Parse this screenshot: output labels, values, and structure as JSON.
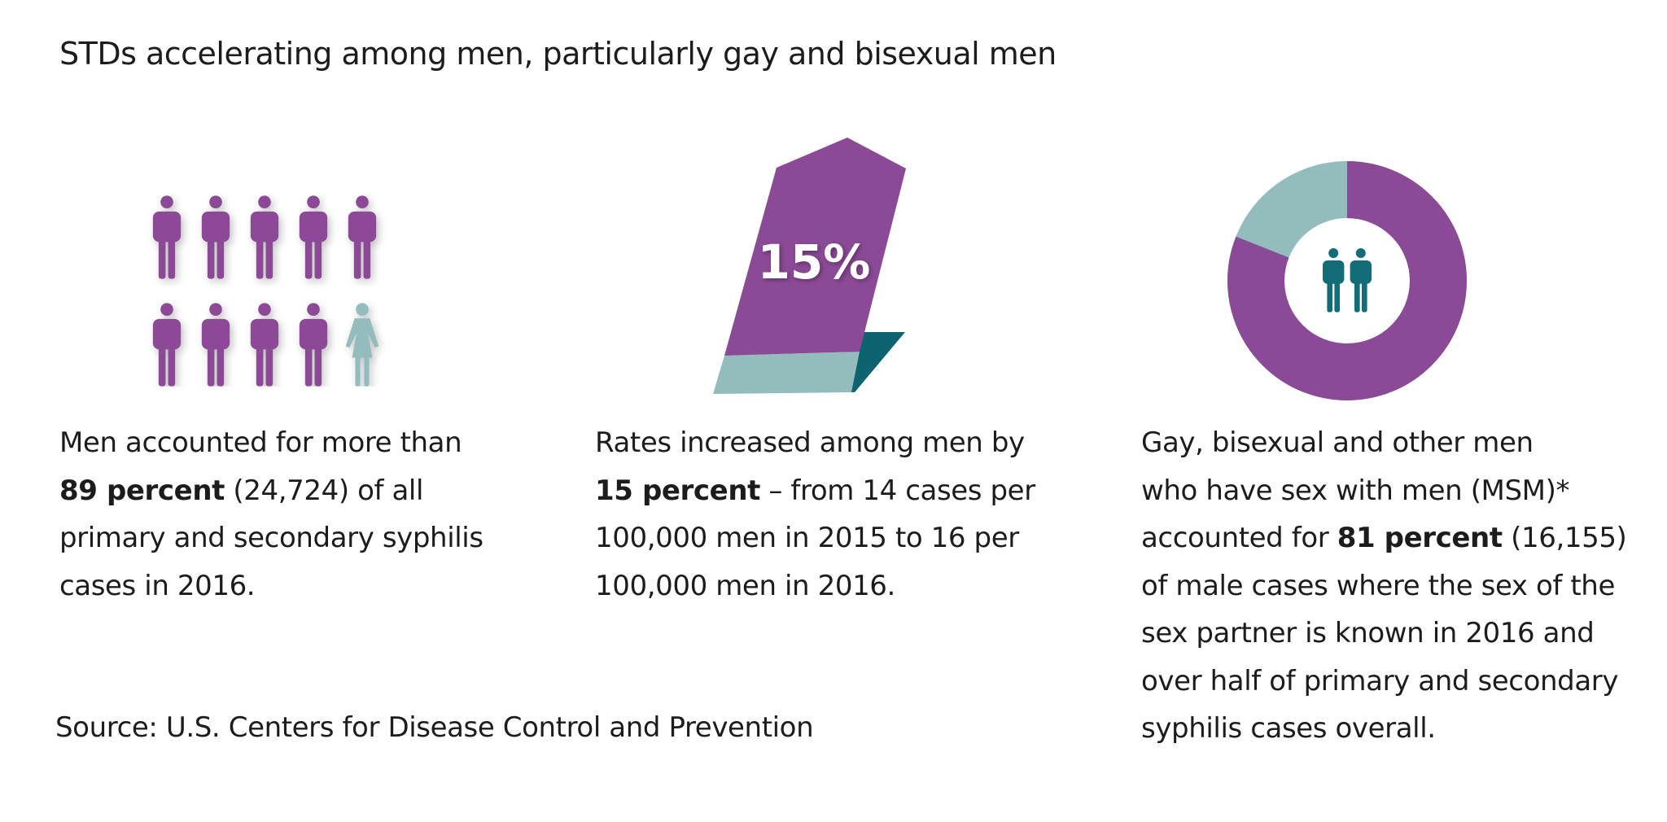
{
  "title": "STDs accelerating among men, particularly gay and bisexual men",
  "colors": {
    "purple": "#8b4a96",
    "teal_light": "#94bcbc",
    "teal_dark": "#0d6470",
    "teal_icon": "#126d78"
  },
  "panel1": {
    "icon_group": "ten-person-figures",
    "men_count": 9,
    "women_count": 1,
    "caption": {
      "line1": "Men accounted for more than",
      "bold": "89 percent",
      "after_bold": " (24,724) of all",
      "line3": "primary and secondary syphilis",
      "line4": "cases in 2016."
    }
  },
  "panel2": {
    "graphic_label": "15%",
    "caption": {
      "line1": "Rates increased among men by",
      "bold": "15 percent",
      "after_bold": " – from 14 cases per",
      "line3": "100,000 men in 2015 to 16 per",
      "line4": "100,000 men in 2016."
    }
  },
  "panel3": {
    "donut_share": 0.81,
    "center_icon": "two-men-icon",
    "caption": {
      "line1": "Gay, bisexual and other men",
      "line2": "who have sex with men (MSM)*",
      "before_bold": "accounted for ",
      "bold": "81 percent",
      "after_bold": " (16,155)",
      "line4": "of male cases where the sex of the",
      "line5": "sex partner is known in 2016 and",
      "line6": "over half of primary and secondary",
      "line7": "syphilis cases overall."
    }
  },
  "source": "Source: U.S. Centers for Disease Control and Prevention"
}
